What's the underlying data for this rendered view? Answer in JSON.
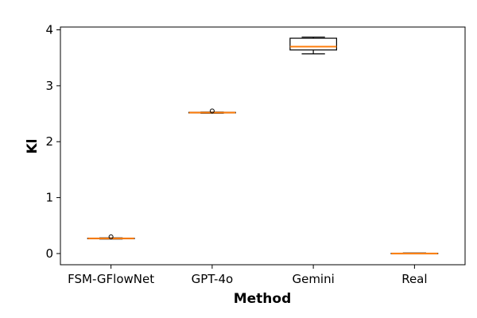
{
  "chart_data": {
    "type": "box",
    "title": "",
    "xlabel": "Method",
    "ylabel": "Kl",
    "ylim": [
      -0.2,
      4.05
    ],
    "yticks": [
      0,
      1,
      2,
      3,
      4
    ],
    "categories": [
      "FSM-GFlowNet",
      "GPT-4o",
      "Gemini",
      "Real"
    ],
    "boxes": [
      {
        "category": "FSM-GFlowNet",
        "whislo": 0.26,
        "q1": 0.265,
        "median": 0.27,
        "q3": 0.275,
        "whishi": 0.28,
        "fliers": [
          0.3
        ]
      },
      {
        "category": "GPT-4o",
        "whislo": 2.51,
        "q1": 2.515,
        "median": 2.52,
        "q3": 2.525,
        "whishi": 2.53,
        "fliers": [
          2.55
        ]
      },
      {
        "category": "Gemini",
        "whislo": 3.57,
        "q1": 3.64,
        "median": 3.7,
        "q3": 3.85,
        "whishi": 3.87,
        "fliers": []
      },
      {
        "category": "Real",
        "whislo": 0.0,
        "q1": 0.0,
        "median": 0.0,
        "q3": 0.005,
        "whishi": 0.01,
        "fliers": []
      }
    ],
    "grid": false,
    "colors": {
      "box": "#000000",
      "median": "#ff7f0e",
      "background": "#ffffff"
    }
  }
}
